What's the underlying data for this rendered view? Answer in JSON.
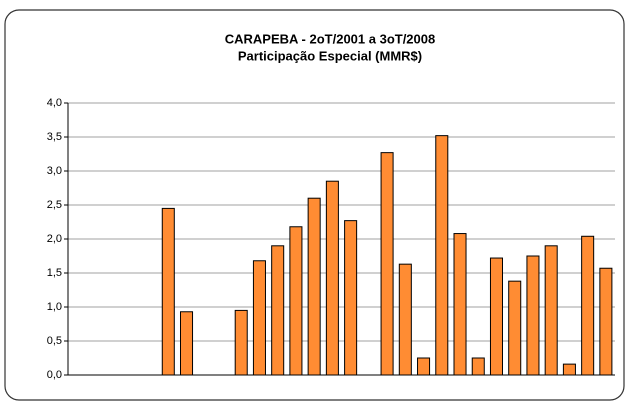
{
  "chart_data": {
    "type": "bar",
    "title": "CARAPEBA - 2oT/2001 a 3oT/2008",
    "subtitle": "Participação Especial (MMR$)",
    "categories": [
      null,
      null,
      null,
      null,
      null,
      null,
      null,
      null,
      null,
      null,
      null,
      null,
      null,
      null,
      null,
      null,
      null,
      null,
      null,
      null,
      null,
      null,
      null,
      null,
      null,
      null,
      null,
      null,
      null,
      null
    ],
    "values": [
      null,
      null,
      null,
      null,
      null,
      2.45,
      0.93,
      null,
      null,
      0.95,
      1.68,
      1.9,
      2.18,
      2.6,
      2.85,
      2.27,
      null,
      3.27,
      1.63,
      0.25,
      3.52,
      2.08,
      0.25,
      1.72,
      1.38,
      1.75,
      1.9,
      0.16,
      2.04,
      1.57
    ],
    "color": "#ff8c33",
    "ylim": [
      0,
      4
    ],
    "yticks": [
      {
        "value": 0,
        "label": "0,0"
      },
      {
        "value": 0.5,
        "label": "0,5"
      },
      {
        "value": 1,
        "label": "1,0"
      },
      {
        "value": 1.5,
        "label": "1,5"
      },
      {
        "value": 2,
        "label": "2,0"
      },
      {
        "value": 2.5,
        "label": "2,5"
      },
      {
        "value": 3,
        "label": "3,0"
      },
      {
        "value": 3.5,
        "label": "3,5"
      },
      {
        "value": 4,
        "label": "4,0"
      }
    ],
    "grid": true
  }
}
